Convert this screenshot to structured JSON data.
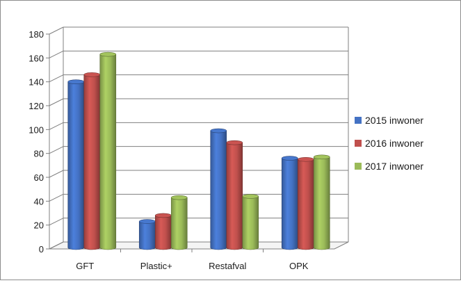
{
  "chart_data": {
    "type": "bar",
    "style": "3d-clustered-column",
    "categories": [
      "GFT",
      "Plastic+",
      "Restafval",
      "OPK"
    ],
    "series": [
      {
        "name": "2015 inwoner",
        "values": [
          140,
          23,
          99,
          76
        ],
        "color": "#4472c4"
      },
      {
        "name": "2016 inwoner",
        "values": [
          146,
          28,
          89,
          75
        ],
        "color": "#c0504d"
      },
      {
        "name": "2017 inwoner",
        "values": [
          163,
          43,
          44,
          77
        ],
        "color": "#9bbb59"
      }
    ],
    "y_ticks": [
      "0",
      "20",
      "40",
      "60",
      "80",
      "100",
      "120",
      "140",
      "160",
      "180"
    ],
    "ylim": [
      0,
      180
    ],
    "grid": true,
    "legend_position": "right",
    "title": "",
    "xlabel": "",
    "ylabel": ""
  }
}
